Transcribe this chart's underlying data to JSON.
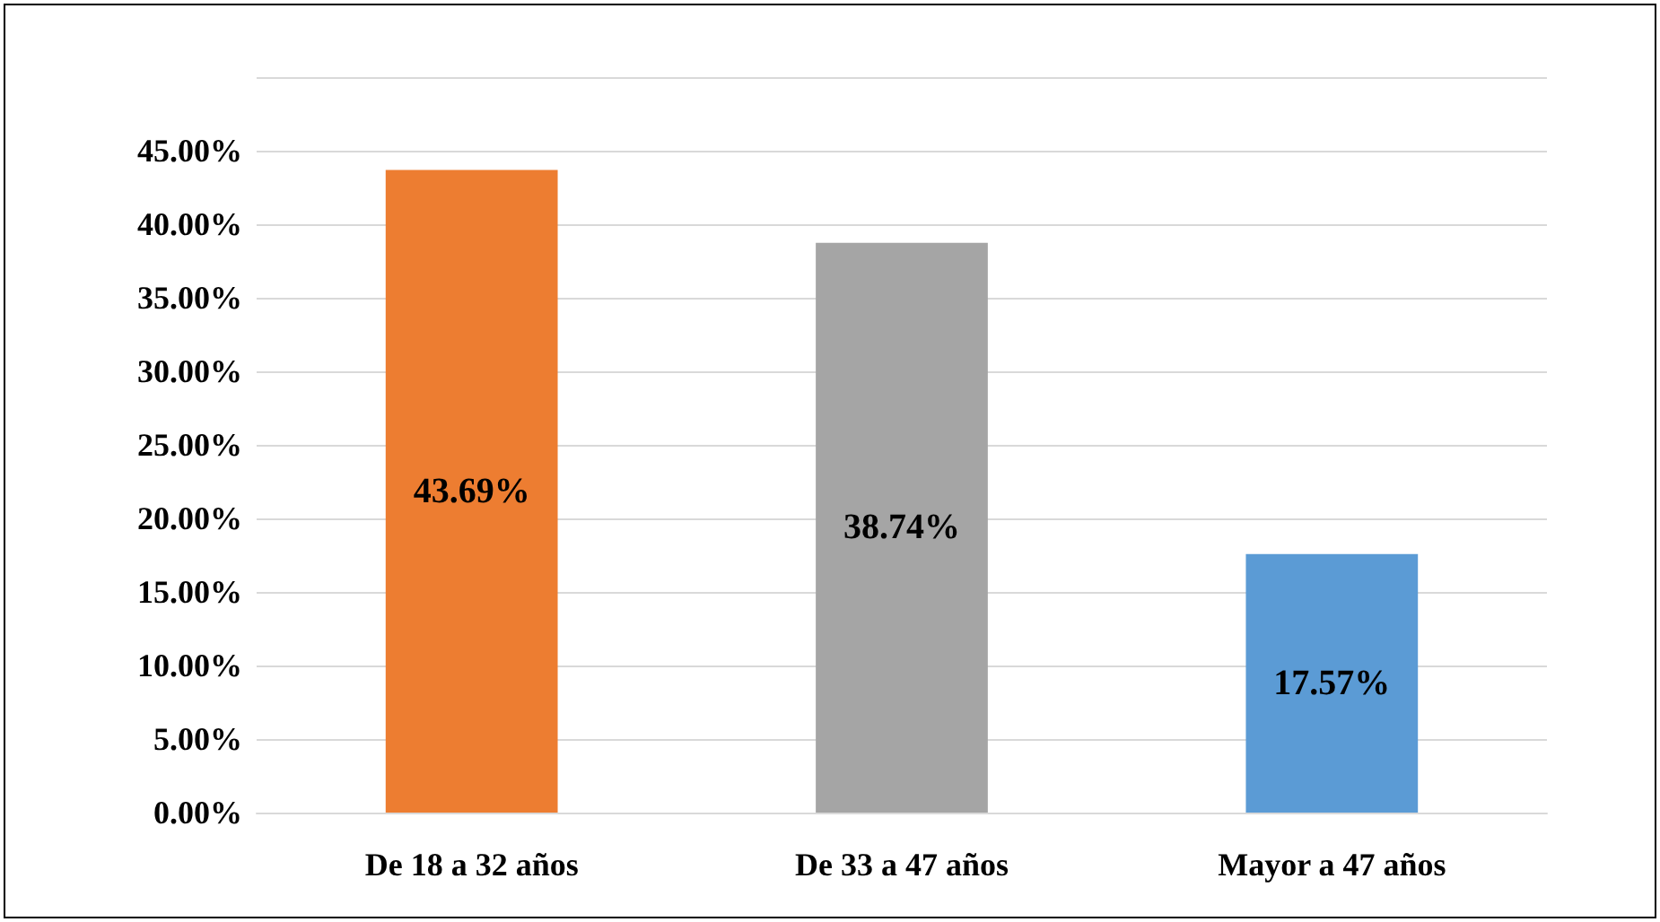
{
  "chart_data": {
    "type": "bar",
    "categories": [
      "De 18 a 32 años",
      "De 33 a 47 años",
      "Mayor a 47 años"
    ],
    "values": [
      43.69,
      38.74,
      17.57
    ],
    "colors": [
      "#ed7d31",
      "#a5a5a5",
      "#5b9bd5"
    ],
    "value_labels": [
      "43.69%",
      "38.74%",
      "17.57%"
    ],
    "ylim": [
      0,
      50
    ],
    "yticks": [
      {
        "value": 0,
        "label": "0.00%"
      },
      {
        "value": 5,
        "label": "5.00%"
      },
      {
        "value": 10,
        "label": "10.00%"
      },
      {
        "value": 15,
        "label": "15.00%"
      },
      {
        "value": 20,
        "label": "20.00%"
      },
      {
        "value": 25,
        "label": "25.00%"
      },
      {
        "value": 30,
        "label": "30.00%"
      },
      {
        "value": 35,
        "label": "35.00%"
      },
      {
        "value": 40,
        "label": "40.00%"
      },
      {
        "value": 45,
        "label": "45.00%"
      },
      {
        "value": 50,
        "label": null
      }
    ],
    "grid": "y"
  }
}
